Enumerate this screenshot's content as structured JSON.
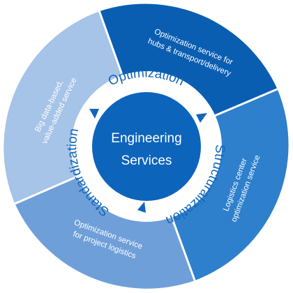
{
  "center": {
    "line1": "Engineering",
    "line2": "Services"
  },
  "ring_labels": {
    "top": "Optimization",
    "right": "Structuralization",
    "left": "Standardization"
  },
  "segments": {
    "top_right": {
      "line1": "Optimization service for",
      "line2": "hubs & transport/delivery"
    },
    "right": {
      "line1": "Logistics center",
      "line2": "optimization service"
    },
    "bottom": {
      "line1": "Optimization service",
      "line2": "for project logistics"
    },
    "left": {
      "line1": "Big data-based,",
      "line2": "value-added service"
    }
  },
  "colors": {
    "segment_top_right": "#0a5eb2",
    "segment_right": "#2e7fcc",
    "segment_bottom": "#6f9fd8",
    "segment_left": "#a6c3e8",
    "ring": "#ffffff",
    "center": "#0d64bb",
    "arrow": "#1266b8",
    "ring_text": "#1266b8"
  }
}
